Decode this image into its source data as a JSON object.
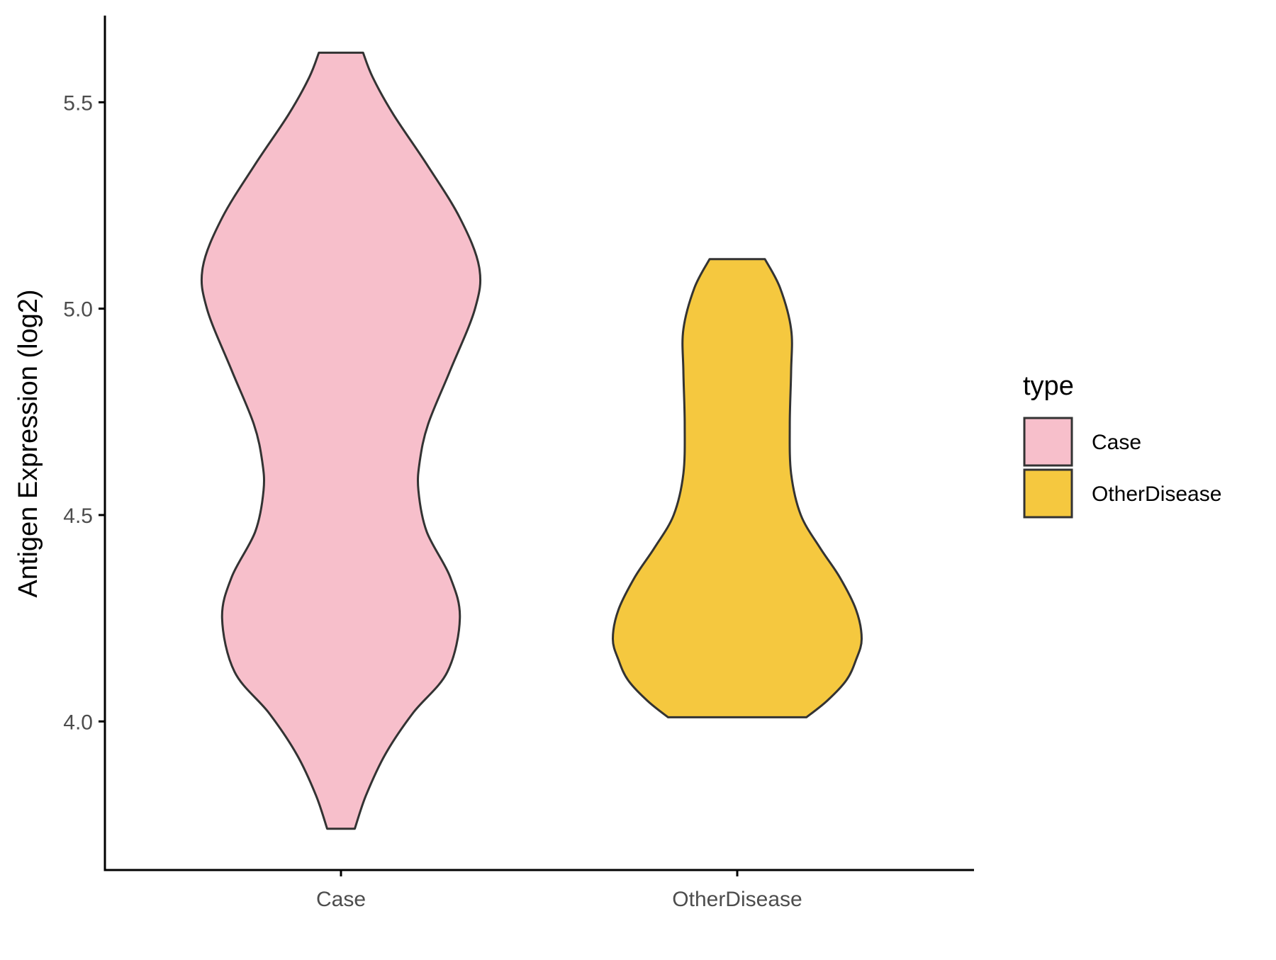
{
  "chart_data": {
    "type": "violin",
    "xlabel": "",
    "ylabel": "Antigen Expression (log2)",
    "categories": [
      "Case",
      "OtherDisease"
    ],
    "ylim": [
      3.64,
      5.71
    ],
    "yticks": [
      4.0,
      4.5,
      5.0,
      5.5
    ],
    "ytick_labels": [
      "4.0",
      "4.5",
      "5.0",
      "5.5"
    ],
    "grid": false,
    "legend": {
      "title": "type",
      "position": "right",
      "entries": [
        "Case",
        "OtherDisease"
      ]
    },
    "colors": {
      "Case": "#f7bfcb",
      "OtherDisease": "#f5c83f",
      "outline": "#333333",
      "axis": "#000000"
    },
    "series": [
      {
        "name": "Case",
        "min": 3.74,
        "max": 5.62,
        "profile": [
          [
            3.74,
            0.1
          ],
          [
            3.82,
            0.18
          ],
          [
            3.92,
            0.32
          ],
          [
            4.02,
            0.52
          ],
          [
            4.12,
            0.77
          ],
          [
            4.25,
            0.86
          ],
          [
            4.35,
            0.79
          ],
          [
            4.46,
            0.62
          ],
          [
            4.56,
            0.56
          ],
          [
            4.63,
            0.57
          ],
          [
            4.72,
            0.63
          ],
          [
            4.85,
            0.79
          ],
          [
            5.0,
            0.97
          ],
          [
            5.1,
            1.0
          ],
          [
            5.22,
            0.86
          ],
          [
            5.35,
            0.62
          ],
          [
            5.47,
            0.38
          ],
          [
            5.56,
            0.23
          ],
          [
            5.62,
            0.16
          ]
        ]
      },
      {
        "name": "OtherDisease",
        "min": 4.01,
        "max": 5.12,
        "profile": [
          [
            4.01,
            0.5
          ],
          [
            4.05,
            0.65
          ],
          [
            4.1,
            0.79
          ],
          [
            4.15,
            0.86
          ],
          [
            4.2,
            0.9
          ],
          [
            4.27,
            0.86
          ],
          [
            4.35,
            0.74
          ],
          [
            4.42,
            0.6
          ],
          [
            4.5,
            0.46
          ],
          [
            4.6,
            0.39
          ],
          [
            4.72,
            0.38
          ],
          [
            4.85,
            0.39
          ],
          [
            4.95,
            0.39
          ],
          [
            5.05,
            0.31
          ],
          [
            5.12,
            0.2
          ]
        ]
      }
    ]
  }
}
